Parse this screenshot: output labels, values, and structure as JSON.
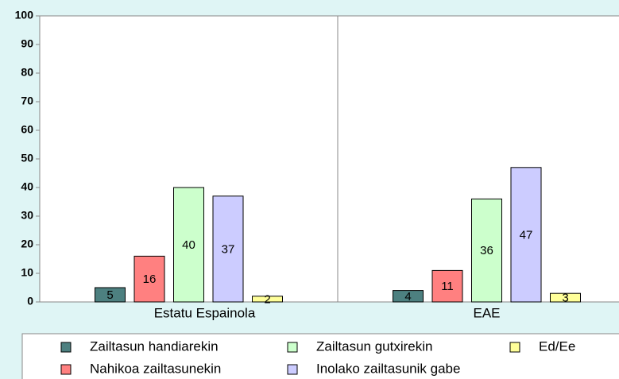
{
  "chart_data": {
    "type": "bar",
    "categories": [
      "Estatu Espainola",
      "EAE"
    ],
    "series": [
      {
        "name": "Zailtasun handiarekin",
        "color": "#4d8080",
        "values": [
          5,
          4
        ]
      },
      {
        "name": "Nahikoa zailtasunekin",
        "color": "#ff8080",
        "values": [
          16,
          11
        ]
      },
      {
        "name": "Zailtasun gutxirekin",
        "color": "#ccffcc",
        "values": [
          40,
          36
        ]
      },
      {
        "name": "Inolako zailtasunik gabe",
        "color": "#ccccff",
        "values": [
          37,
          47
        ]
      },
      {
        "name": "Ed/Ee",
        "color": "#ffff99",
        "values": [
          2,
          3
        ]
      }
    ],
    "ylim": [
      0,
      100
    ],
    "yticks": [
      0,
      10,
      20,
      30,
      40,
      50,
      60,
      70,
      80,
      90,
      100
    ],
    "legend": "bottom"
  }
}
